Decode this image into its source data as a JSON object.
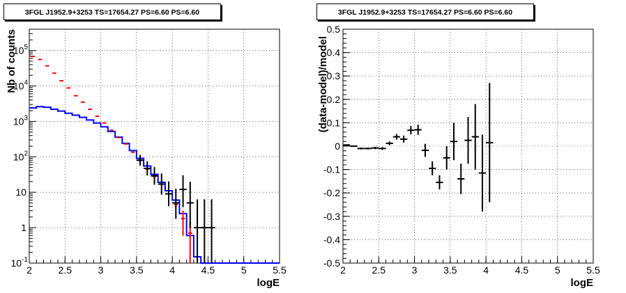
{
  "chart_data": [
    {
      "type": "line",
      "title": "3FGL J1952.9+3253 TS=17654.27 PS=6.60 PS=6.60",
      "xlabel": "logE",
      "ylabel": "Nb of counts",
      "xlim": [
        2,
        5.5
      ],
      "ylim": [
        0.1,
        400000
      ],
      "yscale": "log",
      "grid": true,
      "x_ticks": [
        "2",
        "2.5",
        "3",
        "3.5",
        "4",
        "4.5",
        "5",
        "5.5"
      ],
      "y_ticks": [
        {
          "v": 0.1,
          "base": "10",
          "exp": "-1"
        },
        {
          "v": 1,
          "base": "1",
          "exp": ""
        },
        {
          "v": 10,
          "base": "10",
          "exp": ""
        },
        {
          "v": 100,
          "base": "10",
          "exp": "2"
        },
        {
          "v": 1000,
          "base": "10",
          "exp": "3"
        },
        {
          "v": 10000,
          "base": "10",
          "exp": "4"
        },
        {
          "v": 100000,
          "base": "10",
          "exp": "5"
        }
      ],
      "bin_edges": [
        2.0,
        2.1,
        2.2,
        2.3,
        2.4,
        2.5,
        2.6,
        2.7,
        2.8,
        2.9,
        3.0,
        3.1,
        3.2,
        3.3,
        3.4,
        3.5,
        3.6,
        3.7,
        3.8,
        3.9,
        4.0,
        4.1,
        4.2,
        4.3,
        4.4,
        4.5,
        4.6,
        4.7,
        4.8,
        4.9,
        5.0,
        5.1,
        5.2,
        5.3,
        5.4,
        5.5
      ],
      "series": [
        {
          "name": "model",
          "color": "#0000ff",
          "values": [
            2400,
            2600,
            2500,
            2200,
            1950,
            1700,
            1500,
            1300,
            1100,
            900,
            700,
            520,
            360,
            240,
            150,
            90,
            55,
            32,
            19,
            11,
            6,
            2.5,
            0.6,
            0.15,
            0.1,
            0.1,
            0.1,
            0.1,
            0.1,
            0.1,
            0.1,
            0.1,
            0.1,
            0.1,
            0.1
          ]
        },
        {
          "name": "data-red",
          "color": "#ff0000",
          "points": [
            {
              "x": 2.05,
              "y": 68000
            },
            {
              "x": 2.15,
              "y": 56000
            },
            {
              "x": 2.25,
              "y": 37000
            },
            {
              "x": 2.35,
              "y": 23000
            },
            {
              "x": 2.45,
              "y": 14000
            },
            {
              "x": 2.55,
              "y": 8800
            },
            {
              "x": 2.65,
              "y": 5300
            },
            {
              "x": 2.75,
              "y": 3500
            },
            {
              "x": 2.85,
              "y": 2200
            },
            {
              "x": 2.95,
              "y": 1400
            },
            {
              "x": 3.05,
              "y": 900
            },
            {
              "x": 3.15,
              "y": 560
            },
            {
              "x": 3.25,
              "y": 350
            },
            {
              "x": 3.35,
              "y": 230
            },
            {
              "x": 3.45,
              "y": 135
            },
            {
              "x": 3.55,
              "y": 80
            },
            {
              "x": 3.65,
              "y": 45
            },
            {
              "x": 3.75,
              "y": 28
            },
            {
              "x": 3.85,
              "y": 17
            },
            {
              "x": 3.95,
              "y": 9
            },
            {
              "x": 4.05,
              "y": 4.5
            },
            {
              "x": 4.15,
              "y": 1.8
            },
            {
              "x": 4.25,
              "y": 0.7
            }
          ]
        },
        {
          "name": "data-black",
          "color": "#000000",
          "points": [
            {
              "x": 2.05,
              "y": 0,
              "el": 0,
              "eh": 0
            },
            {
              "x": 3.55,
              "y": 80,
              "el": 0.15,
              "eh": 0.15
            },
            {
              "x": 3.65,
              "y": 47,
              "el": 0.2,
              "eh": 0.2
            },
            {
              "x": 3.75,
              "y": 29,
              "el": 0.25,
              "eh": 0.25
            },
            {
              "x": 3.85,
              "y": 17,
              "el": 0.3,
              "eh": 0.3
            },
            {
              "x": 3.95,
              "y": 9,
              "el": 0.35,
              "eh": 0.35
            },
            {
              "x": 4.05,
              "y": 5,
              "el": 0.45,
              "eh": 0.4
            },
            {
              "x": 4.15,
              "y": 12,
              "el": 0.5,
              "eh": 0.4
            },
            {
              "x": 4.25,
              "y": 5,
              "el": 0.7,
              "eh": 0.6
            },
            {
              "x": 4.35,
              "y": 1,
              "el": 1.3,
              "eh": 0.8
            },
            {
              "x": 4.45,
              "y": 1,
              "el": 1.3,
              "eh": 0.8
            },
            {
              "x": 4.55,
              "y": 1,
              "el": 1.3,
              "eh": 0.8
            }
          ]
        }
      ]
    },
    {
      "type": "scatter",
      "title": "3FGL J1952.9+3253 TS=17654.27 PS=6.60 PS=6.60",
      "xlabel": "logE",
      "ylabel": "(data-model)/model",
      "xlim": [
        2,
        5.5
      ],
      "ylim": [
        -0.5,
        0.5
      ],
      "grid": true,
      "x_ticks": [
        "2",
        "2.5",
        "3",
        "3.5",
        "4",
        "4.5",
        "5",
        "5.5"
      ],
      "y_ticks": [
        "-0.5",
        "-0.4",
        "-0.3",
        "-0.2",
        "-0.1",
        "0",
        "0.1",
        "0.2",
        "0.3",
        "0.4",
        "0.5"
      ],
      "points": [
        {
          "x": 2.05,
          "y": 0.005,
          "e": 0.003
        },
        {
          "x": 2.15,
          "y": 0.0,
          "e": 0.003
        },
        {
          "x": 2.25,
          "y": -0.01,
          "e": 0.004
        },
        {
          "x": 2.35,
          "y": -0.01,
          "e": 0.004
        },
        {
          "x": 2.45,
          "y": -0.008,
          "e": 0.005
        },
        {
          "x": 2.55,
          "y": -0.01,
          "e": 0.006
        },
        {
          "x": 2.65,
          "y": 0.012,
          "e": 0.008
        },
        {
          "x": 2.75,
          "y": 0.04,
          "e": 0.012
        },
        {
          "x": 2.85,
          "y": 0.03,
          "e": 0.015
        },
        {
          "x": 2.95,
          "y": 0.068,
          "e": 0.018
        },
        {
          "x": 3.05,
          "y": 0.07,
          "e": 0.022
        },
        {
          "x": 3.15,
          "y": -0.018,
          "e": 0.028
        },
        {
          "x": 3.25,
          "y": -0.095,
          "e": 0.03
        },
        {
          "x": 3.35,
          "y": -0.155,
          "e": 0.03
        },
        {
          "x": 3.45,
          "y": -0.05,
          "e": 0.05
        },
        {
          "x": 3.55,
          "y": 0.02,
          "e": 0.08
        },
        {
          "x": 3.65,
          "y": -0.14,
          "e": 0.065
        },
        {
          "x": 3.75,
          "y": 0.025,
          "e": 0.1
        },
        {
          "x": 3.85,
          "y": 0.04,
          "e": 0.14
        },
        {
          "x": 3.95,
          "y": -0.115,
          "e": 0.165
        },
        {
          "x": 4.05,
          "y": 0.015,
          "e": 0.255
        }
      ]
    }
  ]
}
